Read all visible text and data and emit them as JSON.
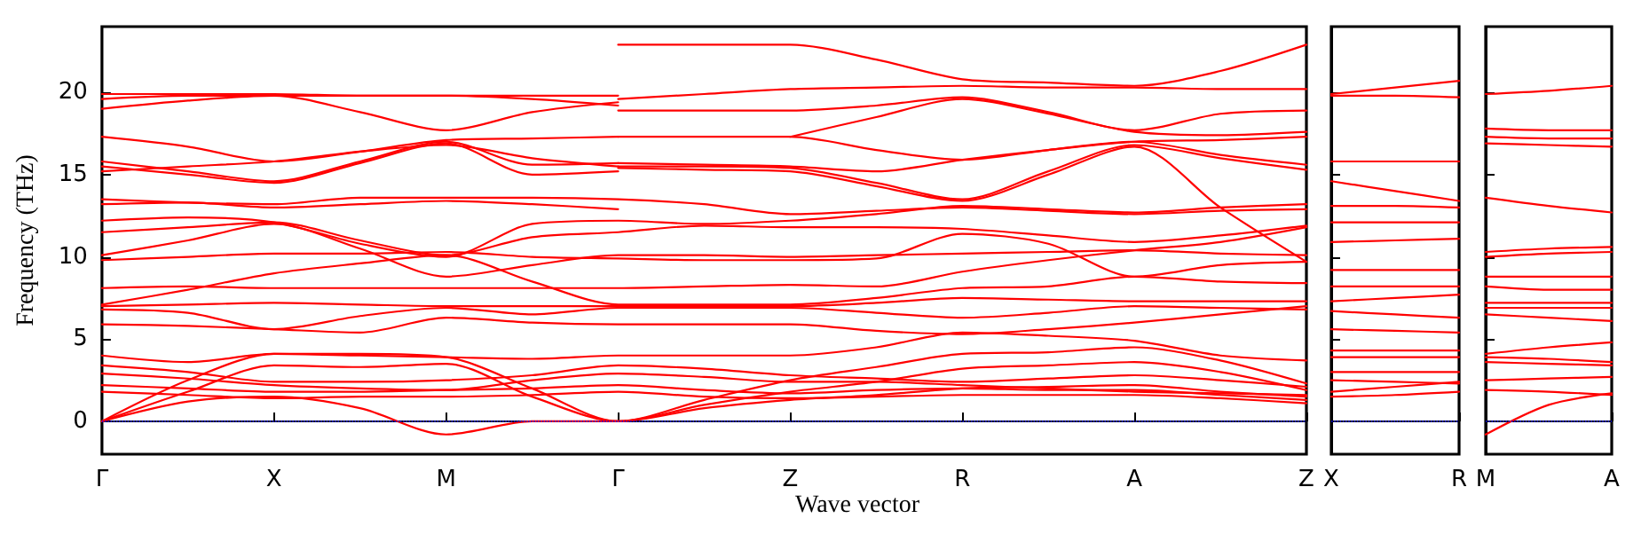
{
  "chart_data": [
    {
      "type": "line",
      "xlabel": "Wave vector",
      "ylabel": "Frequency (THz)",
      "categories": [
        "Γ",
        null,
        "X",
        null,
        "M",
        null,
        "Γ",
        null,
        "Z",
        null,
        "R",
        null,
        "A",
        null,
        "Z"
      ],
      "ylim": [
        -2,
        24
      ],
      "yticks": [
        0,
        5,
        10,
        15,
        20
      ],
      "ref_lines": [
        {
          "axis": "y",
          "value": 0,
          "color": "#0000ff",
          "line_style": "dotted"
        }
      ],
      "series": [
        {
          "color": "#ff0000",
          "values": [
            19.9,
            19.9,
            19.9,
            19.8,
            19.8,
            19.8,
            19.8,
            null,
            null,
            null,
            null,
            null,
            null,
            null,
            null
          ]
        },
        {
          "color": "#ff0000",
          "values": [
            19.6,
            19.8,
            19.8,
            18.8,
            17.7,
            18.8,
            19.4,
            null,
            null,
            null,
            null,
            null,
            null,
            null,
            null
          ]
        },
        {
          "color": "#ff0000",
          "values": [
            19.0,
            19.5,
            19.8,
            19.8,
            19.8,
            19.6,
            19.2,
            null,
            null,
            null,
            null,
            null,
            null,
            null,
            null
          ]
        },
        {
          "color": "#ff0000",
          "values": [
            17.3,
            16.7,
            15.8,
            16.4,
            17.1,
            17.2,
            17.3,
            null,
            null,
            null,
            null,
            null,
            null,
            null,
            null
          ]
        },
        {
          "color": "#ff0000",
          "values": [
            15.8,
            15.2,
            14.6,
            15.8,
            17.0,
            15.6,
            15.7,
            null,
            null,
            null,
            null,
            null,
            null,
            null,
            null
          ]
        },
        {
          "color": "#ff0000",
          "values": [
            15.5,
            15.0,
            14.5,
            15.7,
            16.9,
            15.0,
            15.2,
            null,
            null,
            null,
            null,
            null,
            null,
            null,
            null
          ]
        },
        {
          "color": "#ff0000",
          "values": [
            15.2,
            15.5,
            15.8,
            16.4,
            16.8,
            16.0,
            15.5,
            null,
            null,
            null,
            null,
            null,
            null,
            null,
            null
          ]
        },
        {
          "color": "#ff0000",
          "values": [
            13.2,
            13.3,
            13.0,
            13.2,
            13.4,
            13.2,
            12.9,
            null,
            null,
            null,
            null,
            null,
            null,
            null,
            null
          ]
        },
        {
          "color": "#ff0000",
          "values": [
            null,
            null,
            null,
            null,
            null,
            null,
            22.9,
            22.9,
            22.9,
            22.0,
            20.8,
            20.6,
            20.4,
            21.3,
            22.9
          ]
        },
        {
          "color": "#ff0000",
          "values": [
            null,
            null,
            null,
            null,
            null,
            null,
            19.6,
            19.9,
            20.2,
            20.3,
            20.4,
            20.3,
            20.3,
            20.2,
            20.2
          ]
        },
        {
          "color": "#ff0000",
          "values": [
            null,
            null,
            null,
            null,
            null,
            null,
            18.9,
            18.9,
            18.9,
            19.2,
            19.7,
            18.8,
            17.7,
            18.7,
            18.9
          ]
        },
        {
          "color": "#ff0000",
          "values": [
            null,
            null,
            null,
            null,
            null,
            null,
            null,
            null,
            17.3,
            18.5,
            19.6,
            18.7,
            17.6,
            17.4,
            17.6
          ]
        },
        {
          "color": "#ff0000",
          "values": [
            null,
            null,
            null,
            null,
            null,
            null,
            17.3,
            17.3,
            17.3,
            16.5,
            15.9,
            16.5,
            17.0,
            17.1,
            17.3
          ]
        },
        {
          "color": "#ff0000",
          "values": [
            null,
            null,
            null,
            null,
            null,
            null,
            15.7,
            15.6,
            15.5,
            15.2,
            15.9,
            16.5,
            17.0,
            16.2,
            15.6
          ]
        },
        {
          "color": "#ff0000",
          "values": [
            null,
            null,
            null,
            null,
            null,
            null,
            15.5,
            15.5,
            15.4,
            14.5,
            13.5,
            15.2,
            16.8,
            16.0,
            15.3
          ]
        },
        {
          "color": "#ff0000",
          "values": [
            null,
            null,
            null,
            null,
            null,
            null,
            15.4,
            15.3,
            15.2,
            14.3,
            13.4,
            15.0,
            16.7,
            13.0,
            9.7
          ]
        },
        {
          "color": "#ff0000",
          "values": [
            13.5,
            13.3,
            13.2,
            13.6,
            13.6,
            13.6,
            13.5,
            13.2,
            12.6,
            12.8,
            13.0,
            12.8,
            12.6,
            12.8,
            12.9
          ]
        },
        {
          "color": "#ff0000",
          "values": [
            12.2,
            12.4,
            12.1,
            10.8,
            10.0,
            12.0,
            12.2,
            12.0,
            12.2,
            12.6,
            13.1,
            12.9,
            12.7,
            13.0,
            13.2
          ]
        },
        {
          "color": "#ff0000",
          "values": [
            11.5,
            11.8,
            12.1,
            11.0,
            10.1,
            11.2,
            11.5,
            11.9,
            11.8,
            11.8,
            11.7,
            11.3,
            10.9,
            11.3,
            11.9
          ]
        },
        {
          "color": "#ff0000",
          "values": [
            10.1,
            11.0,
            12.0,
            10.5,
            8.8,
            9.5,
            10.1,
            10.1,
            10.0,
            10.1,
            10.2,
            10.3,
            10.4,
            10.2,
            10.1
          ]
        },
        {
          "color": "#ff0000",
          "values": [
            9.8,
            10.0,
            10.2,
            10.2,
            10.3,
            10.0,
            9.9,
            9.8,
            9.8,
            9.9,
            11.4,
            10.8,
            8.8,
            9.5,
            9.7
          ]
        },
        {
          "color": "#ff0000",
          "values": [
            8.1,
            8.2,
            8.1,
            8.1,
            8.1,
            8.1,
            8.1,
            8.2,
            8.3,
            8.2,
            9.1,
            9.8,
            10.4,
            10.9,
            11.8
          ]
        },
        {
          "color": "#ff0000",
          "values": [
            7.1,
            8.0,
            9.0,
            9.6,
            10.1,
            8.5,
            7.1,
            7.1,
            7.1,
            7.5,
            8.1,
            8.2,
            8.8,
            8.5,
            8.4
          ]
        },
        {
          "color": "#ff0000",
          "values": [
            7.0,
            7.1,
            7.2,
            7.1,
            7.0,
            7.0,
            7.0,
            7.0,
            7.0,
            7.2,
            7.5,
            7.4,
            7.3,
            7.3,
            7.3
          ]
        },
        {
          "color": "#ff0000",
          "values": [
            6.8,
            6.6,
            5.6,
            6.4,
            6.9,
            6.5,
            6.9,
            6.9,
            6.9,
            6.6,
            6.3,
            6.6,
            7.0,
            6.9,
            6.8
          ]
        },
        {
          "color": "#ff0000",
          "values": [
            5.9,
            5.8,
            5.6,
            5.4,
            6.3,
            6.0,
            5.9,
            5.9,
            5.9,
            5.5,
            5.3,
            5.6,
            6.0,
            6.5,
            7.0
          ]
        },
        {
          "color": "#ff0000",
          "values": [
            4.0,
            3.6,
            4.1,
            4.0,
            3.9,
            3.8,
            4.0,
            4.0,
            4.0,
            4.5,
            5.4,
            5.2,
            4.9,
            4.0,
            3.7
          ]
        },
        {
          "color": "#ff0000",
          "values": [
            3.4,
            3.0,
            2.4,
            2.4,
            2.5,
            2.8,
            3.4,
            3.2,
            2.8,
            2.6,
            2.4,
            2.6,
            2.8,
            2.5,
            2.1
          ]
        },
        {
          "color": "#ff0000",
          "values": [
            2.9,
            2.6,
            2.2,
            2.0,
            1.9,
            2.5,
            2.9,
            2.7,
            2.4,
            2.4,
            2.2,
            2.0,
            1.8,
            1.7,
            1.6
          ]
        },
        {
          "color": "#ff0000",
          "values": [
            2.2,
            2.0,
            1.8,
            1.8,
            1.9,
            2.0,
            2.2,
            1.9,
            1.7,
            1.9,
            2.0,
            1.9,
            1.9,
            1.6,
            1.3
          ]
        },
        {
          "color": "#ff0000",
          "values": [
            1.8,
            1.6,
            1.4,
            1.5,
            1.5,
            1.6,
            1.8,
            1.5,
            1.4,
            1.5,
            1.6,
            1.6,
            1.6,
            1.4,
            1.1
          ]
        },
        {
          "color": "#ff0000",
          "values": [
            0,
            2.5,
            4.1,
            4.1,
            3.9,
            2.0,
            0,
            1.3,
            2.5,
            3.3,
            4.1,
            4.2,
            4.5,
            3.7,
            2.3
          ]
        },
        {
          "color": "#ff0000",
          "values": [
            0,
            1.8,
            3.4,
            3.3,
            3.5,
            1.5,
            0,
            1.0,
            1.8,
            2.4,
            3.2,
            3.4,
            3.6,
            3.0,
            1.9
          ]
        },
        {
          "color": "#ff0000",
          "values": [
            0,
            1.2,
            1.5,
            0.8,
            -0.8,
            0,
            0,
            0.8,
            1.3,
            1.6,
            2.0,
            2.1,
            2.2,
            1.8,
            1.5
          ]
        }
      ]
    },
    {
      "type": "line",
      "categories": [
        "X",
        null,
        "R"
      ],
      "ylim": [
        -2,
        24
      ],
      "yticks": [
        0,
        5,
        10,
        15,
        20
      ],
      "tick_labels": "x",
      "ref_lines": [
        {
          "axis": "y",
          "value": 0,
          "color": "#0000ff",
          "line_style": "dotted"
        }
      ],
      "series": [
        {
          "color": "#ff0000",
          "values": [
            19.9,
            20.3,
            20.7
          ]
        },
        {
          "color": "#ff0000",
          "values": [
            19.8,
            19.8,
            19.7
          ]
        },
        {
          "color": "#ff0000",
          "values": [
            15.8,
            15.8,
            15.8
          ]
        },
        {
          "color": "#ff0000",
          "values": [
            14.6,
            14.0,
            13.4
          ]
        },
        {
          "color": "#ff0000",
          "values": [
            13.1,
            13.1,
            13.0
          ]
        },
        {
          "color": "#ff0000",
          "values": [
            12.1,
            12.1,
            12.1
          ]
        },
        {
          "color": "#ff0000",
          "values": [
            10.9,
            11.0,
            11.1
          ]
        },
        {
          "color": "#ff0000",
          "values": [
            9.2,
            9.2,
            9.2
          ]
        },
        {
          "color": "#ff0000",
          "values": [
            8.2,
            8.2,
            8.2
          ]
        },
        {
          "color": "#ff0000",
          "values": [
            7.3,
            7.5,
            7.7
          ]
        },
        {
          "color": "#ff0000",
          "values": [
            6.7,
            6.5,
            6.3
          ]
        },
        {
          "color": "#ff0000",
          "values": [
            5.6,
            5.5,
            5.4
          ]
        },
        {
          "color": "#ff0000",
          "values": [
            4.3,
            4.3,
            4.3
          ]
        },
        {
          "color": "#ff0000",
          "values": [
            3.9,
            3.9,
            3.9
          ]
        },
        {
          "color": "#ff0000",
          "values": [
            3.0,
            3.0,
            3.0
          ]
        },
        {
          "color": "#ff0000",
          "values": [
            2.5,
            2.4,
            2.3
          ]
        },
        {
          "color": "#ff0000",
          "values": [
            1.8,
            2.1,
            2.4
          ]
        },
        {
          "color": "#ff0000",
          "values": [
            1.5,
            1.6,
            1.8
          ]
        }
      ]
    },
    {
      "type": "line",
      "categories": [
        "M",
        null,
        "A"
      ],
      "ylim": [
        -2,
        24
      ],
      "yticks": [
        0,
        5,
        10,
        15,
        20
      ],
      "tick_labels": "x",
      "ref_lines": [
        {
          "axis": "y",
          "value": 0,
          "color": "#0000ff",
          "line_style": "dotted"
        }
      ],
      "series": [
        {
          "color": "#ff0000",
          "values": [
            19.9,
            20.1,
            20.4
          ]
        },
        {
          "color": "#ff0000",
          "values": [
            17.8,
            17.7,
            17.7
          ]
        },
        {
          "color": "#ff0000",
          "values": [
            17.3,
            17.2,
            17.2
          ]
        },
        {
          "color": "#ff0000",
          "values": [
            16.9,
            16.8,
            16.7
          ]
        },
        {
          "color": "#ff0000",
          "values": [
            13.6,
            13.1,
            12.7
          ]
        },
        {
          "color": "#ff0000",
          "values": [
            10.3,
            10.5,
            10.6
          ]
        },
        {
          "color": "#ff0000",
          "values": [
            10.0,
            10.2,
            10.3
          ]
        },
        {
          "color": "#ff0000",
          "values": [
            8.8,
            8.8,
            8.8
          ]
        },
        {
          "color": "#ff0000",
          "values": [
            8.2,
            8.0,
            8.0
          ]
        },
        {
          "color": "#ff0000",
          "values": [
            7.2,
            7.2,
            7.2
          ]
        },
        {
          "color": "#ff0000",
          "values": [
            6.9,
            6.9,
            6.9
          ]
        },
        {
          "color": "#ff0000",
          "values": [
            6.5,
            6.3,
            6.1
          ]
        },
        {
          "color": "#ff0000",
          "values": [
            4.1,
            4.5,
            4.8
          ]
        },
        {
          "color": "#ff0000",
          "values": [
            3.9,
            3.8,
            3.6
          ]
        },
        {
          "color": "#ff0000",
          "values": [
            3.6,
            3.5,
            3.4
          ]
        },
        {
          "color": "#ff0000",
          "values": [
            2.5,
            2.6,
            2.7
          ]
        },
        {
          "color": "#ff0000",
          "values": [
            1.9,
            1.8,
            1.6
          ]
        },
        {
          "color": "#ff0000",
          "values": [
            -0.8,
            1.0,
            1.7
          ]
        }
      ]
    }
  ]
}
